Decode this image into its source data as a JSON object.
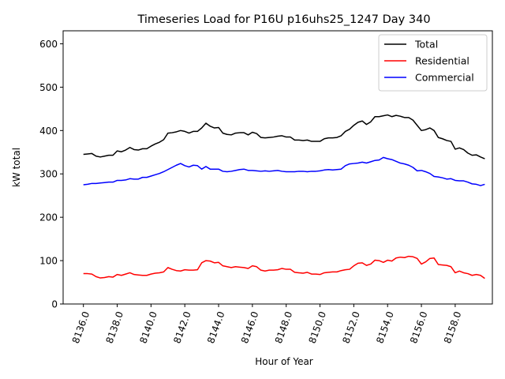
{
  "chart_data": {
    "type": "line",
    "title": "Timeseries Load for P16U p16uhs25_1247  Day 340",
    "xlabel": "Hour of Year",
    "ylabel": "kW total",
    "xlim": [
      8134.8,
      8160.2
    ],
    "ylim": [
      0,
      630
    ],
    "xticks": [
      8136,
      8138,
      8140,
      8142,
      8144,
      8146,
      8148,
      8150,
      8152,
      8154,
      8156,
      8158
    ],
    "xtick_labels": [
      "8136.0",
      "8138.0",
      "8140.0",
      "8142.0",
      "8144.0",
      "8146.0",
      "8148.0",
      "8150.0",
      "8152.0",
      "8154.0",
      "8156.0",
      "8158.0"
    ],
    "yticks": [
      0,
      100,
      200,
      300,
      400,
      500,
      600
    ],
    "ytick_labels": [
      "0",
      "100",
      "200",
      "300",
      "400",
      "500",
      "600"
    ],
    "grid": false,
    "legend_position": "top-right",
    "x_start": 8136.0,
    "x_step": 0.25,
    "series": [
      {
        "name": "Total",
        "color": "#000000",
        "values": [
          345,
          346,
          347,
          341,
          339,
          341,
          343,
          343,
          353,
          351,
          355,
          361,
          356,
          355,
          358,
          358,
          364,
          369,
          373,
          379,
          394,
          395,
          397,
          400,
          398,
          394,
          398,
          398,
          406,
          417,
          410,
          406,
          407,
          394,
          391,
          390,
          394,
          395,
          395,
          390,
          396,
          393,
          384,
          383,
          384,
          385,
          387,
          388,
          385,
          385,
          378,
          378,
          377,
          378,
          375,
          375,
          375,
          381,
          383,
          383,
          384,
          388,
          398,
          403,
          412,
          419,
          422,
          414,
          420,
          432,
          432,
          434,
          436,
          432,
          435,
          433,
          430,
          430,
          424,
          412,
          400,
          402,
          406,
          400,
          384,
          381,
          377,
          375,
          357,
          360,
          356,
          348,
          343,
          344,
          339,
          335
        ]
      },
      {
        "name": "Residential",
        "color": "#ff0000",
        "values": [
          70,
          70,
          69,
          63,
          60,
          61,
          63,
          62,
          68,
          66,
          69,
          72,
          68,
          67,
          66,
          66,
          69,
          71,
          72,
          74,
          84,
          80,
          77,
          76,
          79,
          78,
          78,
          79,
          95,
          100,
          99,
          95,
          96,
          88,
          86,
          84,
          86,
          85,
          84,
          82,
          88,
          86,
          78,
          76,
          78,
          78,
          79,
          82,
          80,
          80,
          73,
          72,
          71,
          73,
          69,
          69,
          68,
          72,
          73,
          74,
          74,
          77,
          79,
          80,
          88,
          94,
          95,
          89,
          92,
          101,
          100,
          96,
          101,
          99,
          106,
          108,
          107,
          110,
          109,
          105,
          92,
          97,
          105,
          106,
          91,
          90,
          89,
          86,
          72,
          76,
          72,
          70,
          66,
          68,
          66,
          59
        ]
      },
      {
        "name": "Commercial",
        "color": "#0000ff",
        "values": [
          275,
          276,
          278,
          278,
          279,
          280,
          281,
          281,
          285,
          285,
          286,
          289,
          288,
          288,
          292,
          292,
          295,
          298,
          301,
          305,
          310,
          315,
          320,
          324,
          319,
          316,
          320,
          319,
          311,
          317,
          311,
          311,
          311,
          306,
          305,
          306,
          308,
          310,
          311,
          308,
          308,
          307,
          306,
          307,
          306,
          307,
          308,
          306,
          305,
          305,
          305,
          306,
          306,
          305,
          306,
          306,
          307,
          309,
          310,
          309,
          310,
          311,
          319,
          323,
          324,
          325,
          327,
          325,
          328,
          331,
          332,
          338,
          335,
          333,
          329,
          325,
          323,
          320,
          315,
          307,
          308,
          305,
          301,
          294,
          293,
          291,
          288,
          289,
          285,
          284,
          284,
          281,
          277,
          276,
          273,
          276
        ]
      }
    ]
  }
}
